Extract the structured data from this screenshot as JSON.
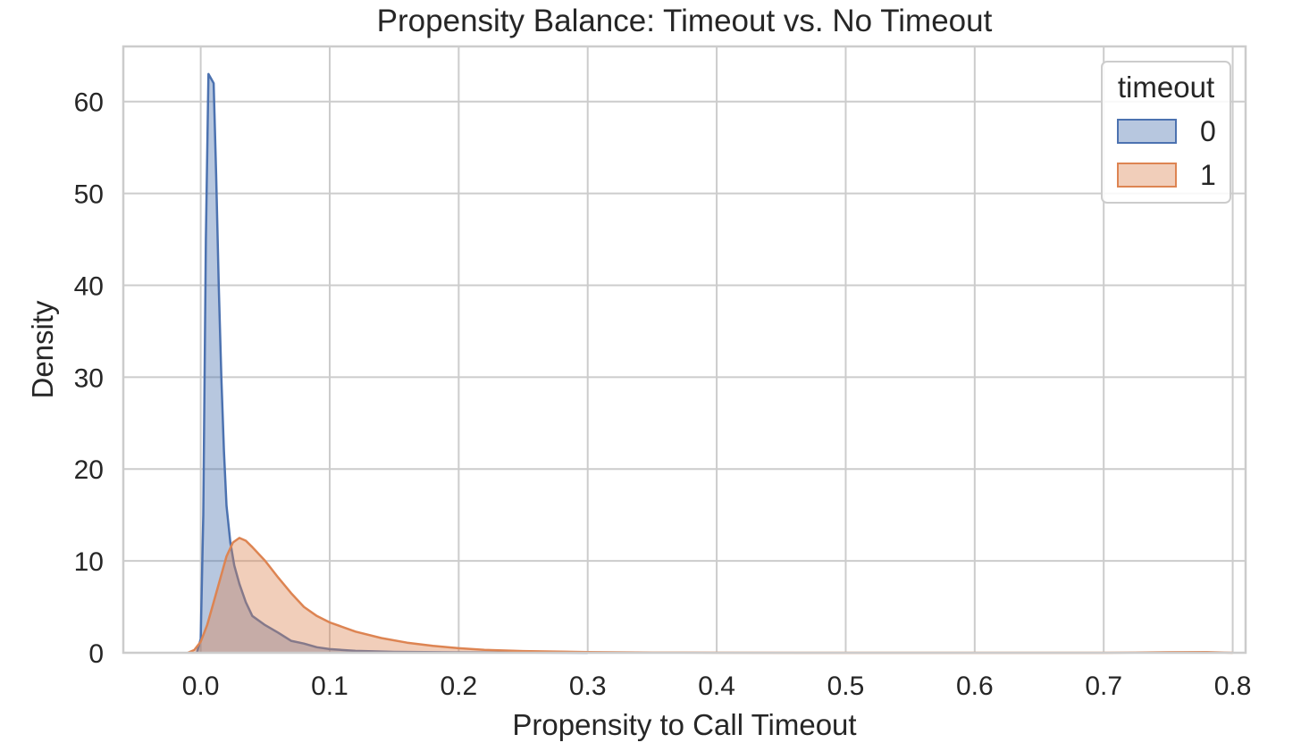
{
  "chart_data": {
    "type": "area",
    "title": "Propensity Balance: Timeout vs. No Timeout",
    "xlabel": "Propensity to Call Timeout",
    "ylabel": "Density",
    "xlim": [
      -0.06,
      0.81
    ],
    "ylim": [
      0,
      66
    ],
    "x_ticks": [
      0.0,
      0.1,
      0.2,
      0.3,
      0.4,
      0.5,
      0.6,
      0.7,
      0.8
    ],
    "x_tick_labels": [
      "0.0",
      "0.1",
      "0.2",
      "0.3",
      "0.4",
      "0.5",
      "0.6",
      "0.7",
      "0.8"
    ],
    "y_ticks": [
      0,
      10,
      20,
      30,
      40,
      50,
      60
    ],
    "y_tick_labels": [
      "0",
      "10",
      "20",
      "30",
      "40",
      "50",
      "60"
    ],
    "grid": true,
    "legend": {
      "title": "timeout",
      "placement": "top-right"
    },
    "series": [
      {
        "name": "0",
        "color": "#4c72b0",
        "points": [
          [
            -0.003,
            0
          ],
          [
            0.0,
            1.5
          ],
          [
            0.002,
            15
          ],
          [
            0.004,
            45
          ],
          [
            0.006,
            63
          ],
          [
            0.008,
            62.5
          ],
          [
            0.01,
            62
          ],
          [
            0.012,
            52
          ],
          [
            0.014,
            40
          ],
          [
            0.016,
            30
          ],
          [
            0.018,
            22
          ],
          [
            0.02,
            16
          ],
          [
            0.023,
            12
          ],
          [
            0.026,
            9.5
          ],
          [
            0.03,
            7.5
          ],
          [
            0.035,
            5.5
          ],
          [
            0.04,
            4
          ],
          [
            0.05,
            3
          ],
          [
            0.06,
            2.2
          ],
          [
            0.07,
            1.3
          ],
          [
            0.08,
            1.0
          ],
          [
            0.09,
            0.6
          ],
          [
            0.1,
            0.4
          ],
          [
            0.12,
            0.2
          ],
          [
            0.15,
            0.1
          ],
          [
            0.2,
            0.05
          ],
          [
            0.3,
            0.0
          ]
        ]
      },
      {
        "name": "1",
        "color": "#dd8452",
        "points": [
          [
            -0.01,
            0.0
          ],
          [
            -0.005,
            0.3
          ],
          [
            0.0,
            1.2
          ],
          [
            0.005,
            3
          ],
          [
            0.01,
            5.5
          ],
          [
            0.015,
            8
          ],
          [
            0.02,
            10.5
          ],
          [
            0.025,
            12
          ],
          [
            0.03,
            12.5
          ],
          [
            0.035,
            12.2
          ],
          [
            0.04,
            11.5
          ],
          [
            0.05,
            10
          ],
          [
            0.06,
            8.2
          ],
          [
            0.07,
            6.5
          ],
          [
            0.08,
            5
          ],
          [
            0.09,
            4
          ],
          [
            0.1,
            3.3
          ],
          [
            0.12,
            2.3
          ],
          [
            0.14,
            1.6
          ],
          [
            0.16,
            1.1
          ],
          [
            0.18,
            0.75
          ],
          [
            0.2,
            0.5
          ],
          [
            0.22,
            0.32
          ],
          [
            0.25,
            0.18
          ],
          [
            0.3,
            0.08
          ],
          [
            0.35,
            0.03
          ],
          [
            0.4,
            0.01
          ],
          [
            0.5,
            0.0
          ],
          [
            0.7,
            0.0
          ],
          [
            0.75,
            0.06
          ],
          [
            0.78,
            0.08
          ],
          [
            0.8,
            0.0
          ]
        ]
      }
    ]
  }
}
